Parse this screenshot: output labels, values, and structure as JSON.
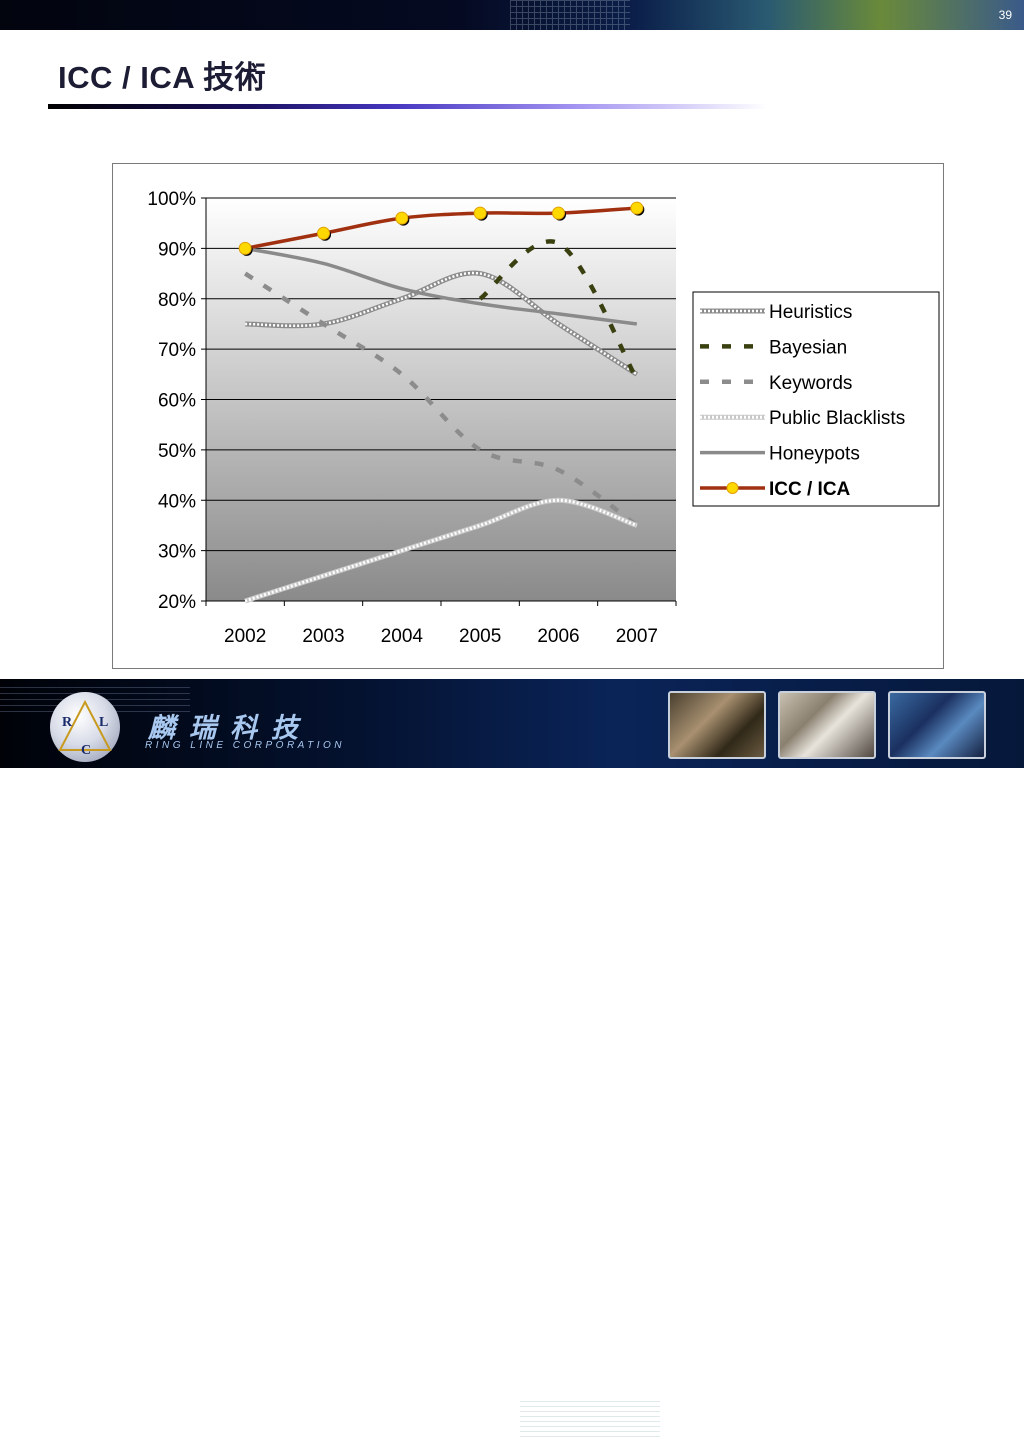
{
  "page": {
    "number": "39",
    "title": "ICC / ICA 技術"
  },
  "footer": {
    "company_cn": "麟瑞科技",
    "company_en": "RING LINE CORPORATION",
    "logo_letters": [
      "R",
      "L",
      "C"
    ]
  },
  "chart_data": {
    "type": "line",
    "categories": [
      "2002",
      "2003",
      "2004",
      "2005",
      "2006",
      "2007"
    ],
    "y_ticks": [
      "20%",
      "30%",
      "40%",
      "50%",
      "60%",
      "70%",
      "80%",
      "90%",
      "100%"
    ],
    "ylim": [
      20,
      100
    ],
    "grid": true,
    "legend_position": "right",
    "series": [
      {
        "name": "Heuristics",
        "values": [
          75,
          75,
          80,
          85,
          75,
          65
        ],
        "style": "dotted-small",
        "color": "#8c8c8c"
      },
      {
        "name": "Bayesian",
        "values": [
          null,
          null,
          null,
          80,
          91,
          64
        ],
        "style": "dash-bold",
        "color": "#3a4010"
      },
      {
        "name": "Keywords",
        "values": [
          85,
          75,
          65,
          50,
          46,
          35
        ],
        "style": "dash",
        "color": "#8c8c8c"
      },
      {
        "name": "Public Blacklists",
        "values": [
          20,
          25,
          30,
          35,
          40,
          35
        ],
        "style": "dotted-white",
        "color": "#ffffff"
      },
      {
        "name": "Honeypots",
        "values": [
          90,
          87,
          82,
          79,
          77,
          75
        ],
        "style": "solid",
        "color": "#8a8a8a"
      },
      {
        "name": "ICC / ICA",
        "values": [
          90,
          93,
          96,
          97,
          97,
          98
        ],
        "style": "solid-marker",
        "color": "#a03010",
        "marker_color": "#ffd800"
      }
    ]
  }
}
